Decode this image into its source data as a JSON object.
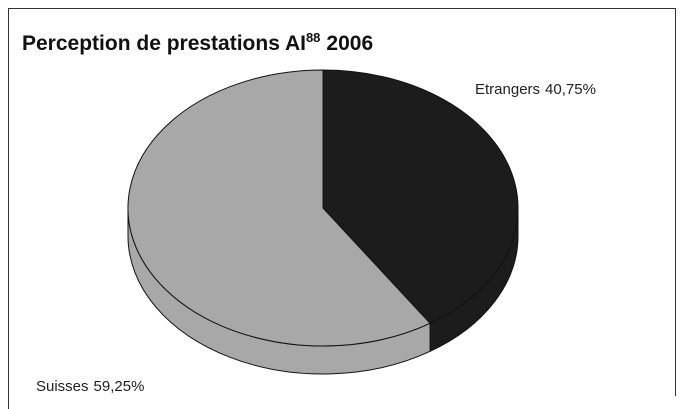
{
  "chart_data": {
    "type": "pie3d",
    "title": "Perception de prestations AI",
    "title_note": "88",
    "title_year": "2006",
    "categories": [
      "Etrangers",
      "Suisses"
    ],
    "values": [
      40.75,
      59.25
    ],
    "value_labels": [
      "40,75%",
      "59,25%"
    ],
    "colors": [
      "#1c1c1c",
      "#a8a8a8"
    ]
  }
}
